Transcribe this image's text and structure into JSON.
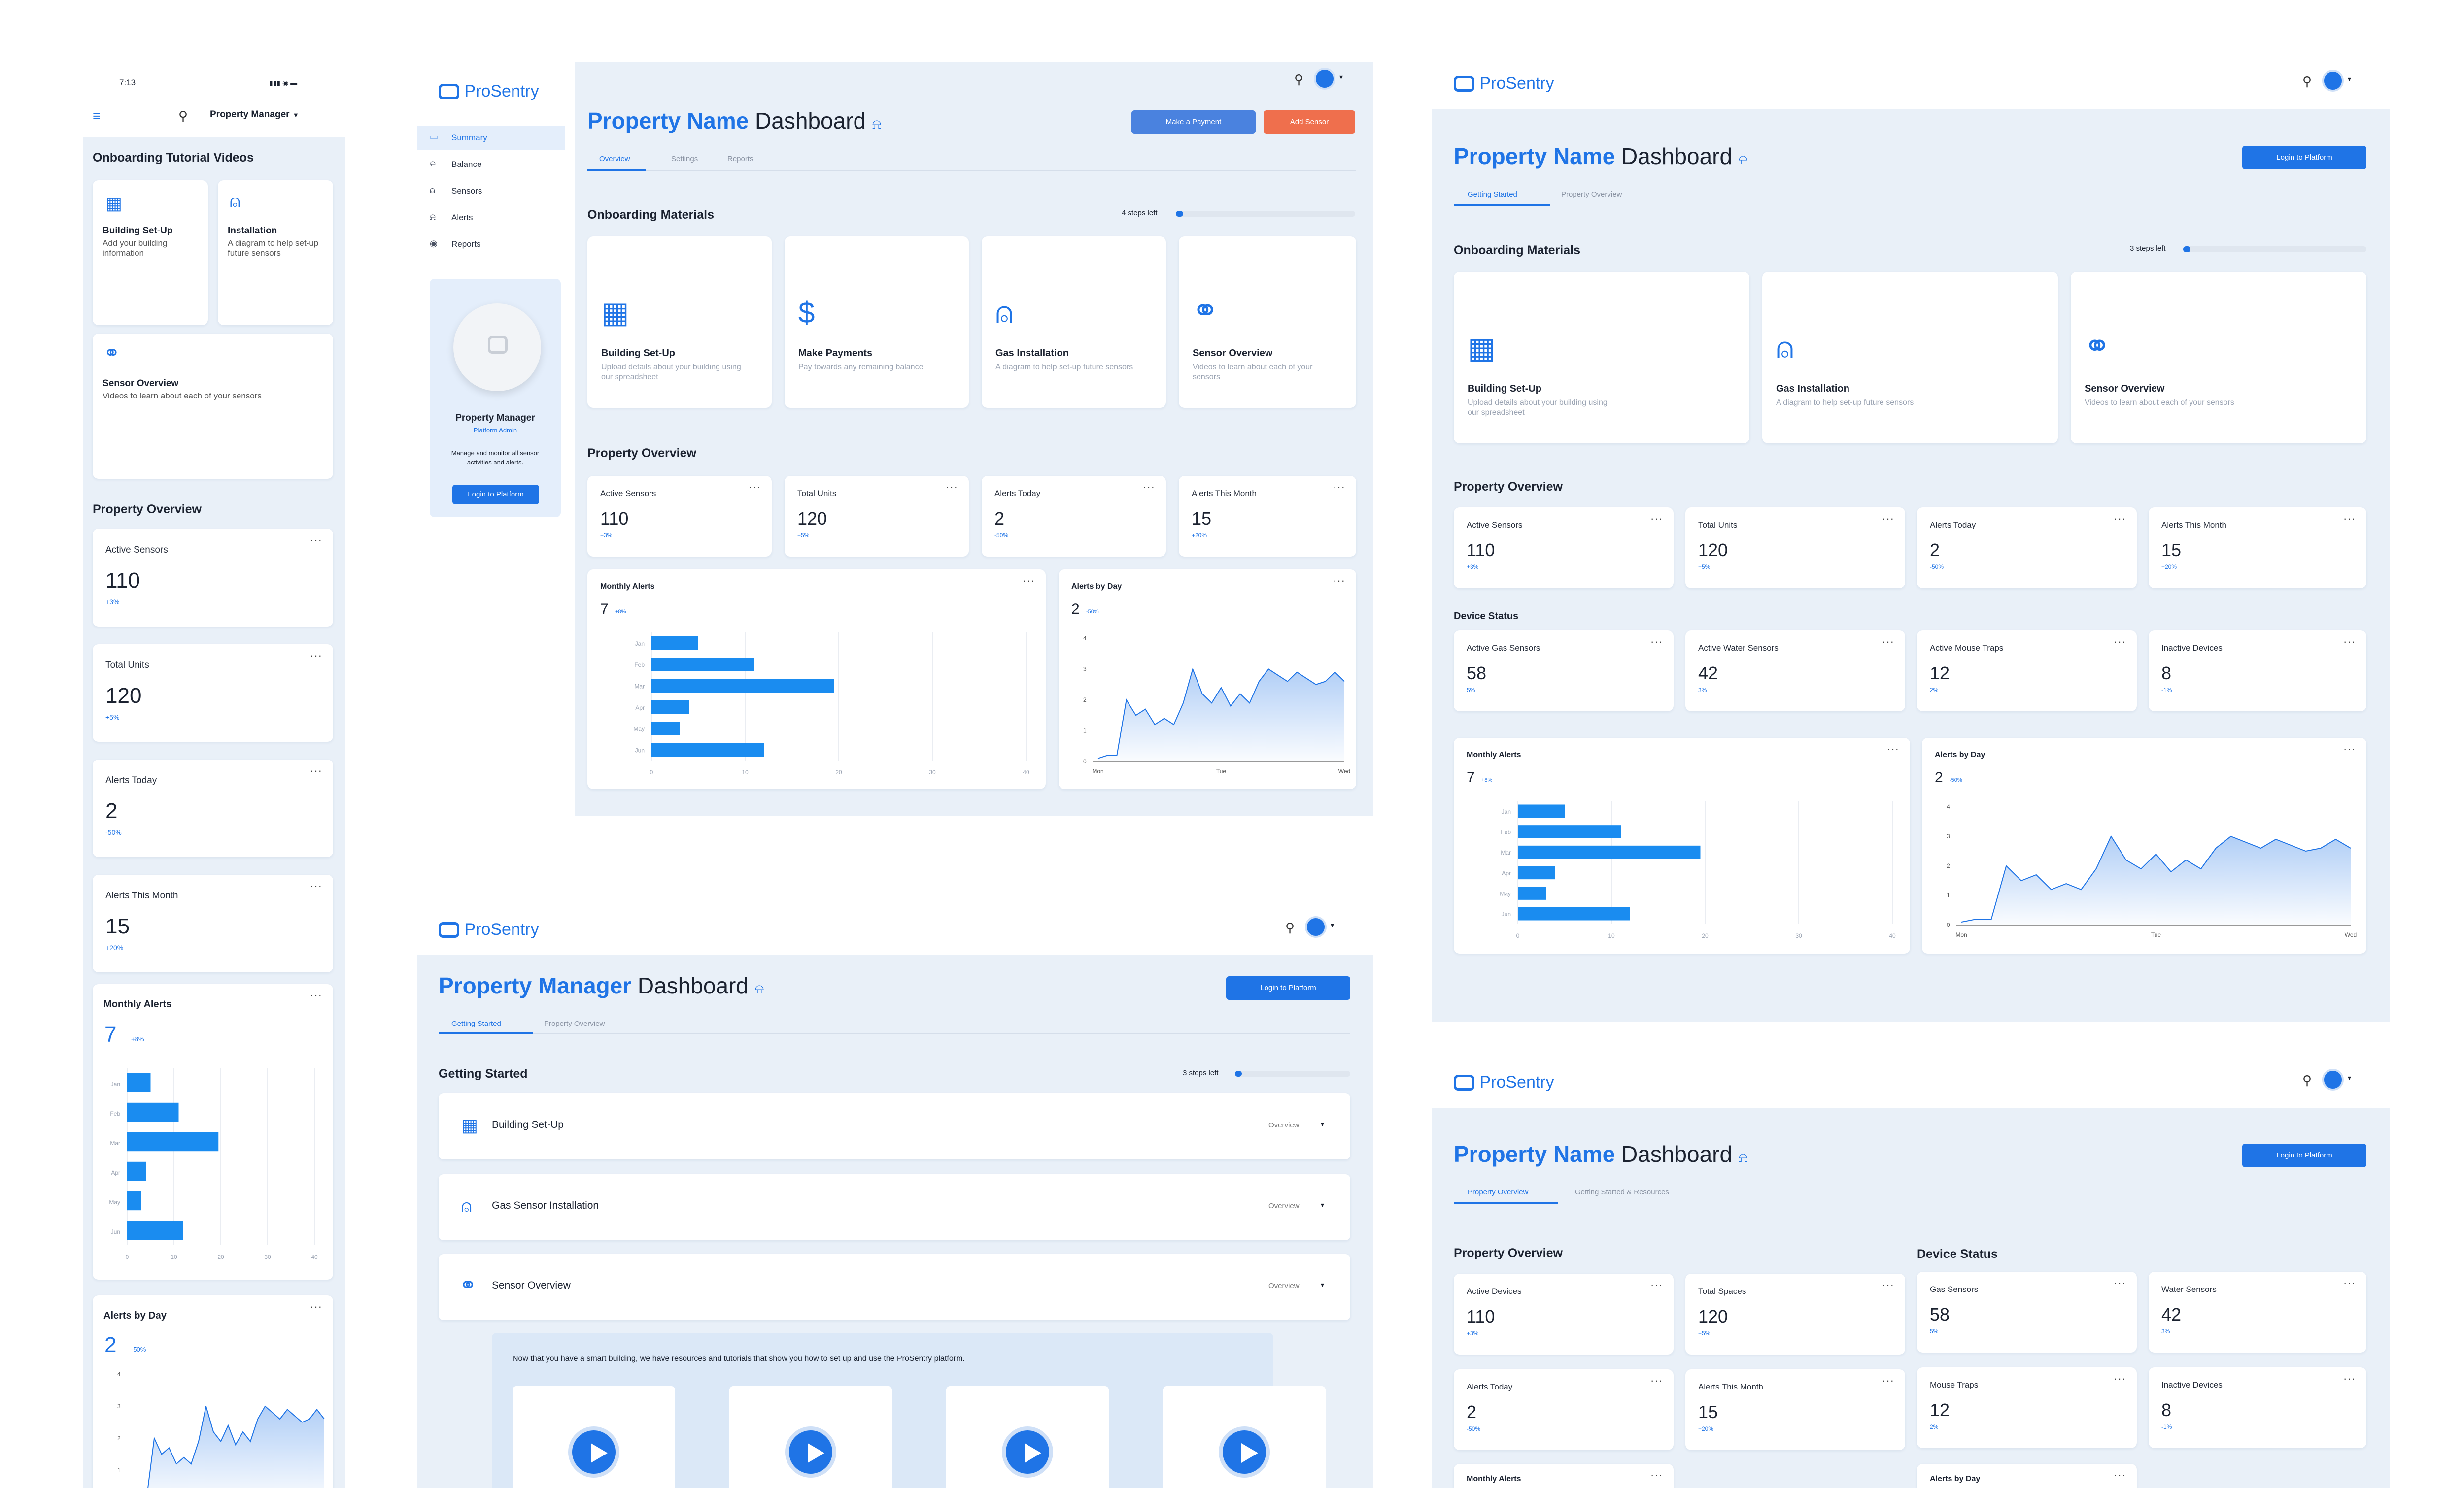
{
  "brand": {
    "name": "ProSentry"
  },
  "mobile": {
    "time": "7:13",
    "header_title": "Property Manager",
    "onboarding_title": "Onboarding Tutorial Videos",
    "cards": [
      {
        "title": "Building Set-Up",
        "desc": "Add your building information"
      },
      {
        "title": "Installation",
        "desc": "A diagram to help set-up future sensors"
      },
      {
        "title": "Sensor Overview",
        "desc": "Videos to learn about each of your sensors"
      }
    ],
    "overview_title": "Property Overview",
    "stats": [
      {
        "label": "Active Sensors",
        "value": "110",
        "change": "+3%"
      },
      {
        "label": "Total Units",
        "value": "120",
        "change": "+5%"
      },
      {
        "label": "Alerts Today",
        "value": "2",
        "change": "-50%"
      },
      {
        "label": "Alerts This Month",
        "value": "15",
        "change": "+20%"
      }
    ],
    "monthly": {
      "title": "Monthly Alerts",
      "value": "7",
      "change": "+8%"
    },
    "byday": {
      "title": "Alerts by Day",
      "value": "2",
      "change": "-50%"
    }
  },
  "sidebar": {
    "items": [
      {
        "label": "Summary",
        "icon": "monitor-icon"
      },
      {
        "label": "Balance",
        "icon": "wallet-icon"
      },
      {
        "label": "Sensors",
        "icon": "sensor-icon"
      },
      {
        "label": "Alerts",
        "icon": "bell-icon"
      },
      {
        "label": "Reports",
        "icon": "eye-icon"
      }
    ],
    "profile": {
      "name": "Property Manager",
      "role": "Platform Admin",
      "desc": "Manage and monitor all sensor activities and alerts.",
      "button": "Login to Platform"
    }
  },
  "dash1": {
    "title_accent": "Property Name",
    "title_rest": "Dashboard",
    "buttons": {
      "payment": "Make a Payment",
      "sensor": "Add Sensor"
    },
    "tabs": [
      "Overview",
      "Settings",
      "Reports"
    ],
    "onboarding_title": "Onboarding Materials",
    "steps_left": "4 steps left",
    "progress": 0.04,
    "materials": [
      {
        "title": "Building Set-Up",
        "desc": "Upload details about your building using our spreadsheet"
      },
      {
        "title": "Make Payments",
        "desc": "Pay towards any remaining balance"
      },
      {
        "title": "Gas Installation",
        "desc": "A diagram to help set-up future sensors"
      },
      {
        "title": "Sensor Overview",
        "desc": "Videos to learn about each of your sensors"
      }
    ],
    "overview_title": "Property Overview",
    "stats": [
      {
        "label": "Active Sensors",
        "value": "110",
        "change": "+3%"
      },
      {
        "label": "Total Units",
        "value": "120",
        "change": "+5%"
      },
      {
        "label": "Alerts Today",
        "value": "2",
        "change": "-50%"
      },
      {
        "label": "Alerts This Month",
        "value": "15",
        "change": "+20%"
      }
    ],
    "monthly": {
      "title": "Monthly Alerts",
      "value": "7",
      "change": "+8%"
    },
    "byday": {
      "title": "Alerts by Day",
      "value": "2",
      "change": "-50%"
    }
  },
  "dash2": {
    "title_accent": "Property Name",
    "title_rest": "Dashboard",
    "button": "Login to Platform",
    "tabs": [
      "Getting Started",
      "Property Overview"
    ],
    "onboarding_title": "Onboarding Materials",
    "steps_left": "3 steps left",
    "progress": 0.04,
    "materials": [
      {
        "title": "Building Set-Up",
        "desc": "Upload details about your building using our spreadsheet"
      },
      {
        "title": "Gas Installation",
        "desc": "A diagram to help set-up future sensors"
      },
      {
        "title": "Sensor Overview",
        "desc": "Videos to learn about each of your sensors"
      }
    ],
    "overview_title": "Property Overview",
    "stats": [
      {
        "label": "Active Sensors",
        "value": "110",
        "change": "+3%"
      },
      {
        "label": "Total Units",
        "value": "120",
        "change": "+5%"
      },
      {
        "label": "Alerts Today",
        "value": "2",
        "change": "-50%"
      },
      {
        "label": "Alerts This Month",
        "value": "15",
        "change": "+20%"
      }
    ],
    "device_title": "Device Status",
    "devices": [
      {
        "label": "Active Gas Sensors",
        "value": "58",
        "change": "5%"
      },
      {
        "label": "Active Water Sensors",
        "value": "42",
        "change": "3%"
      },
      {
        "label": "Active Mouse Traps",
        "value": "12",
        "change": "2%"
      },
      {
        "label": "Inactive Devices",
        "value": "8",
        "change": "-1%"
      }
    ],
    "monthly": {
      "title": "Monthly Alerts",
      "value": "7",
      "change": "+8%"
    },
    "byday": {
      "title": "Alerts by Day",
      "value": "2",
      "change": "-50%"
    }
  },
  "dash3": {
    "title_accent": "Property Manager",
    "title_rest": "Dashboard",
    "button": "Login to Platform",
    "tabs": [
      "Getting Started",
      "Property Overview"
    ],
    "section_title": "Getting Started",
    "steps_left": "3 steps left",
    "progress": 0.04,
    "accordion": [
      {
        "title": "Building Set-Up",
        "action": "Overview"
      },
      {
        "title": "Gas Sensor Installation",
        "action": "Overview"
      },
      {
        "title": "Sensor Overview",
        "action": "Overview"
      }
    ],
    "video_intro": "Now that you have a smart building, we have resources and tutorials that show you how to set up and use the ProSentry platform."
  },
  "dash4": {
    "title_accent": "Property Name",
    "title_rest": "Dashboard",
    "button": "Login to Platform",
    "tabs": [
      "Property Overview",
      "Getting Started & Resources"
    ],
    "overview_title": "Property Overview",
    "device_title": "Device Status",
    "stats": [
      {
        "label": "Active Devices",
        "value": "110",
        "change": "+3%"
      },
      {
        "label": "Total Spaces",
        "value": "120",
        "change": "+5%"
      },
      {
        "label": "Alerts Today",
        "value": "2",
        "change": "-50%"
      },
      {
        "label": "Alerts This Month",
        "value": "15",
        "change": "+20%"
      }
    ],
    "devices": [
      {
        "label": "Gas Sensors",
        "value": "58",
        "change": "5%"
      },
      {
        "label": "Water Sensors",
        "value": "42",
        "change": "3%"
      },
      {
        "label": "Mouse Traps",
        "value": "12",
        "change": "2%"
      },
      {
        "label": "Inactive Devices",
        "value": "8",
        "change": "-1%"
      }
    ],
    "monthly_title": "Monthly Alerts",
    "byday_title": "Alerts by Day"
  },
  "chart_data": [
    {
      "type": "bar",
      "orientation": "horizontal",
      "title": "Monthly Alerts",
      "categories": [
        "Jan",
        "Feb",
        "Mar",
        "Apr",
        "May",
        "Jun"
      ],
      "values": [
        5,
        11,
        19.5,
        4,
        3,
        12
      ],
      "xlim": [
        0,
        40
      ],
      "ticks": [
        0,
        10,
        20,
        30,
        40
      ]
    },
    {
      "type": "area",
      "title": "Alerts by Day",
      "x_labels": [
        "Mon",
        "Tue",
        "Wed"
      ],
      "y_ticks": [
        0,
        1,
        2,
        3,
        4
      ],
      "ylim": [
        0,
        4
      ],
      "values": [
        0.1,
        0.2,
        0.2,
        2.0,
        1.5,
        1.7,
        1.2,
        1.4,
        1.2,
        1.9,
        3.0,
        2.2,
        1.9,
        2.4,
        1.8,
        2.2,
        1.9,
        2.6,
        3.0,
        2.8,
        2.6,
        2.9,
        2.7,
        2.5,
        2.6,
        2.9,
        2.6
      ]
    }
  ],
  "colors": {
    "accent": "#1f74e6",
    "danger": "#ef6f4d",
    "bg": "#e9f0f8",
    "bar": "#1a8cf0"
  }
}
